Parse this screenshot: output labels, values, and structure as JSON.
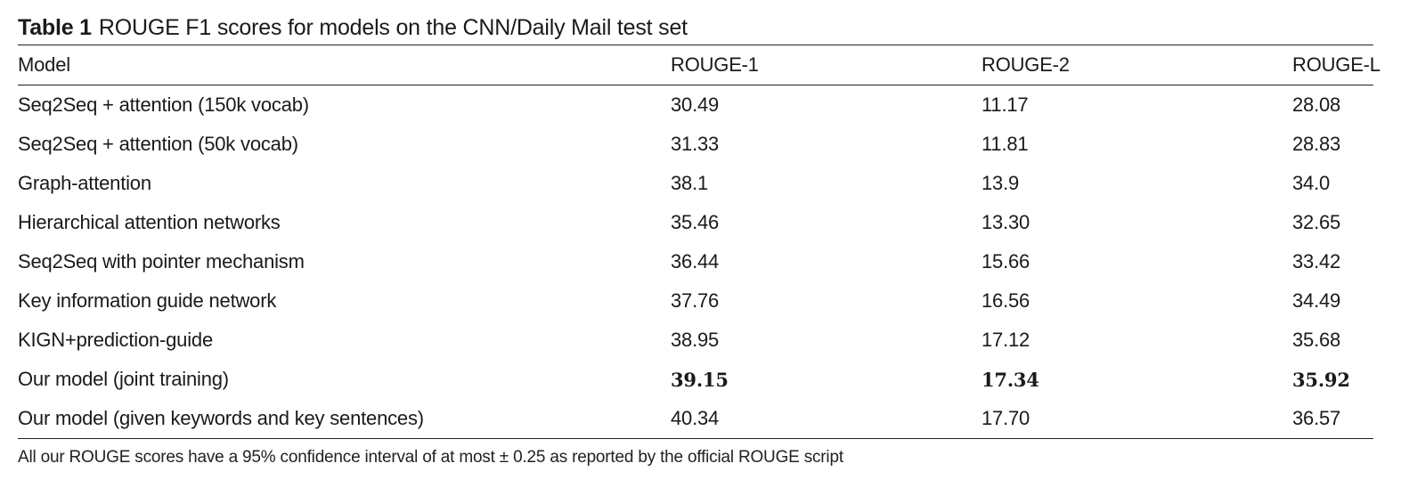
{
  "caption": {
    "label": "Table 1",
    "text": "ROUGE F1 scores for models on the CNN/Daily Mail test set"
  },
  "table": {
    "headers": [
      "Model",
      "ROUGE-1",
      "ROUGE-2",
      "ROUGE-L"
    ],
    "rows": [
      {
        "model": "Seq2Seq + attention (150k vocab)",
        "rouge1": "30.49",
        "rouge2": "11.17",
        "rougel": "28.08"
      },
      {
        "model": "Seq2Seq + attention (50k vocab)",
        "rouge1": "31.33",
        "rouge2": "11.81",
        "rougel": "28.83"
      },
      {
        "model": "Graph-attention",
        "rouge1": "38.1",
        "rouge2": "13.9",
        "rougel": "34.0"
      },
      {
        "model": "Hierarchical attention networks",
        "rouge1": "35.46",
        "rouge2": "13.30",
        "rougel": "32.65"
      },
      {
        "model": "Seq2Seq with pointer mechanism",
        "rouge1": "36.44",
        "rouge2": "15.66",
        "rougel": "33.42"
      },
      {
        "model": "Key information guide network",
        "rouge1": "37.76",
        "rouge2": "16.56",
        "rougel": "34.49"
      },
      {
        "model": "KIGN+prediction-guide",
        "rouge1": "38.95",
        "rouge2": "17.12",
        "rougel": "35.68"
      },
      {
        "model": "Our model (joint training)",
        "rouge1": "39.15",
        "rouge2": "17.34",
        "rougel": "35.92"
      },
      {
        "model": "Our model (given keywords and key sentences)",
        "rouge1": "40.34",
        "rouge2": "17.70",
        "rougel": "36.57"
      }
    ]
  },
  "footnote": "All our ROUGE scores have a 95% confidence interval of at most ± 0.25 as reported by the official ROUGE script"
}
